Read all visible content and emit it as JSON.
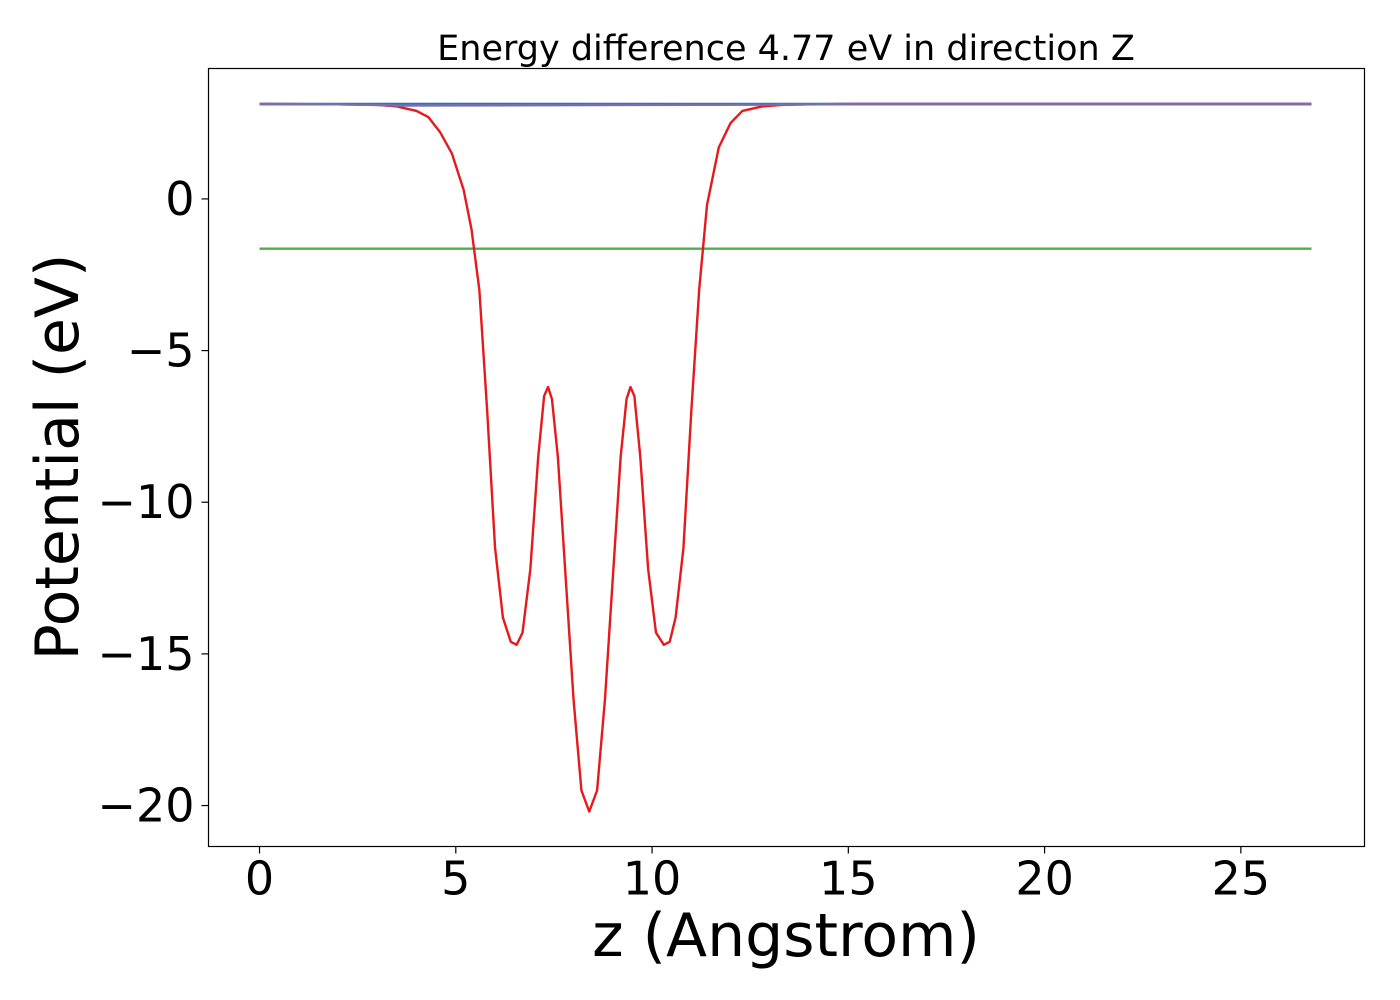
{
  "chart_data": {
    "type": "line",
    "title": "Energy difference 4.77 eV in direction Z",
    "xlabel": "z (Angstrom)",
    "ylabel": "Potential (eV)",
    "xlim": [
      -1.3,
      28.15
    ],
    "ylim": [
      -21.35,
      4.3
    ],
    "xticks": [
      0,
      5,
      10,
      15,
      20,
      25
    ],
    "yticks": [
      0,
      -5,
      -10,
      -15,
      -20
    ],
    "xtick_labels": [
      "0",
      "5",
      "10",
      "15",
      "20",
      "25"
    ],
    "ytick_labels": [
      "0",
      "−5",
      "−10",
      "−15",
      "−20"
    ],
    "grid": false,
    "legend": "none",
    "series": [
      {
        "color": "#1f77b4",
        "x": [
          0,
          26.8
        ],
        "y": [
          3.13,
          3.13
        ]
      },
      {
        "color": "#4daf4a",
        "x": [
          0,
          26.8
        ],
        "y": [
          -1.64,
          -1.64
        ]
      },
      {
        "color": "#e41a1c",
        "x": [
          0,
          2.0,
          3.0,
          3.5,
          4.0,
          4.3,
          4.6,
          4.9,
          5.2,
          5.4,
          5.6,
          5.8,
          6.0,
          6.2,
          6.4,
          6.55,
          6.7,
          6.9,
          7.1,
          7.25,
          7.35,
          7.45,
          7.6,
          7.8,
          8.0,
          8.2,
          8.4,
          8.6,
          8.8,
          9.0,
          9.2,
          9.35,
          9.45,
          9.55,
          9.7,
          9.9,
          10.1,
          10.3,
          10.45,
          10.6,
          10.8,
          11.0,
          11.2,
          11.4,
          11.7,
          12.0,
          12.3,
          12.8,
          13.3,
          14.0,
          15.0,
          20.0,
          26.8
        ],
        "y": [
          3.13,
          3.12,
          3.1,
          3.05,
          2.9,
          2.7,
          2.2,
          1.5,
          0.3,
          -1.0,
          -3.0,
          -7.0,
          -11.5,
          -13.8,
          -14.6,
          -14.7,
          -14.3,
          -12.2,
          -8.5,
          -6.5,
          -6.2,
          -6.6,
          -8.5,
          -12.5,
          -16.5,
          -19.5,
          -20.2,
          -19.5,
          -16.5,
          -12.5,
          -8.5,
          -6.6,
          -6.2,
          -6.5,
          -8.5,
          -12.2,
          -14.3,
          -14.7,
          -14.6,
          -13.8,
          -11.5,
          -7.0,
          -3.0,
          -0.2,
          1.7,
          2.5,
          2.9,
          3.05,
          3.1,
          3.12,
          3.13,
          3.13,
          3.13
        ]
      },
      {
        "color": "#7570b3",
        "x": [
          0,
          2.0,
          3.0,
          3.5,
          13.5,
          15.0,
          20.0,
          26.8
        ],
        "y": [
          3.13,
          3.12,
          3.1,
          3.08,
          3.11,
          3.13,
          3.13,
          3.13
        ]
      }
    ]
  }
}
